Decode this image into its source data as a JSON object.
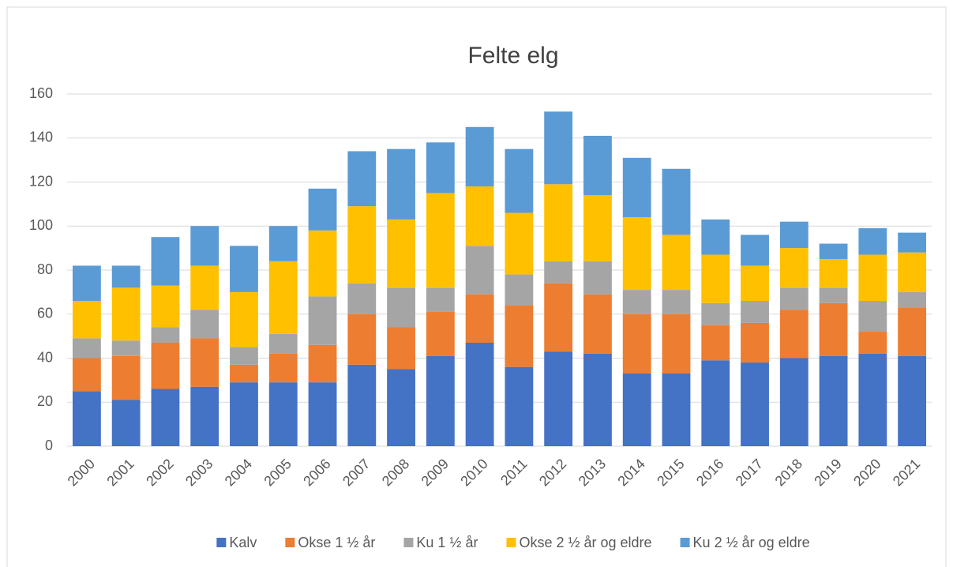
{
  "chart_data": {
    "type": "stacked_bar",
    "title": "Felte elg",
    "categories": [
      "2000",
      "2001",
      "2002",
      "2003",
      "2004",
      "2005",
      "2006",
      "2007",
      "2008",
      "2009",
      "2010",
      "2011",
      "2012",
      "2013",
      "2014",
      "2015",
      "2016",
      "2017",
      "2018",
      "2019",
      "2020",
      "2021"
    ],
    "series": [
      {
        "name": "Kalv",
        "color": "#4472c4",
        "values": [
          25,
          21,
          26,
          27,
          29,
          29,
          29,
          37,
          35,
          41,
          47,
          36,
          43,
          42,
          33,
          33,
          39,
          38,
          40,
          41,
          42,
          41
        ]
      },
      {
        "name": "Okse 1 ½ år",
        "color": "#ed7d31",
        "values": [
          15,
          20,
          21,
          22,
          8,
          13,
          17,
          23,
          19,
          20,
          22,
          28,
          31,
          27,
          27,
          27,
          16,
          18,
          22,
          24,
          10,
          22
        ]
      },
      {
        "name": "Ku 1 ½ år",
        "color": "#a5a5a5",
        "values": [
          9,
          7,
          7,
          13,
          8,
          9,
          22,
          14,
          18,
          11,
          22,
          14,
          10,
          15,
          11,
          11,
          10,
          10,
          10,
          7,
          14,
          7
        ]
      },
      {
        "name": "Okse 2 ½ år og eldre",
        "color": "#ffc000",
        "values": [
          17,
          24,
          19,
          20,
          25,
          33,
          30,
          35,
          31,
          43,
          27,
          28,
          35,
          30,
          33,
          25,
          22,
          16,
          18,
          13,
          21,
          18
        ]
      },
      {
        "name": "Ku 2 ½ år og eldre",
        "color": "#5b9bd5",
        "values": [
          16,
          10,
          22,
          18,
          21,
          16,
          19,
          25,
          32,
          23,
          27,
          29,
          33,
          27,
          27,
          30,
          16,
          14,
          12,
          7,
          12,
          9
        ]
      }
    ],
    "ylim": [
      0,
      160
    ],
    "yticks": [
      0,
      20,
      40,
      60,
      80,
      100,
      120,
      140,
      160
    ],
    "grid": true,
    "legend": "bottom"
  }
}
